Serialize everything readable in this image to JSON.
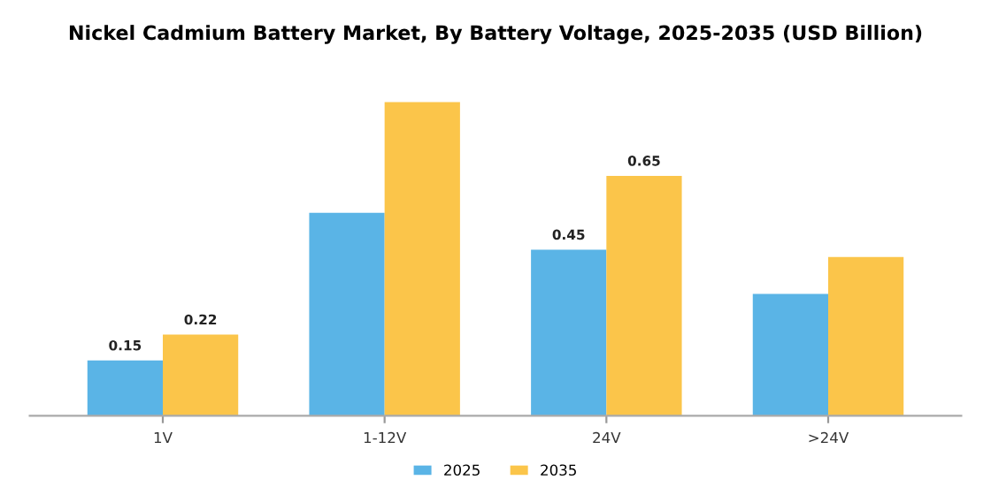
{
  "chart_data": {
    "type": "bar",
    "title": "Nickel Cadmium Battery Market, By Battery Voltage, 2025-2035 (USD Billion)",
    "categories": [
      "1V",
      "1-12V",
      "24V",
      ">24V"
    ],
    "series": [
      {
        "name": "2025",
        "color": "#5ab4e6",
        "values": [
          0.15,
          0.55,
          0.45,
          0.33
        ],
        "value_labels": [
          "0.15",
          null,
          "0.45",
          null
        ]
      },
      {
        "name": "2035",
        "color": "#fbc54a",
        "values": [
          0.22,
          0.85,
          0.65,
          0.43
        ],
        "value_labels": [
          "0.22",
          null,
          "0.65",
          null
        ]
      }
    ],
    "legend": "bottom",
    "grid": false
  }
}
